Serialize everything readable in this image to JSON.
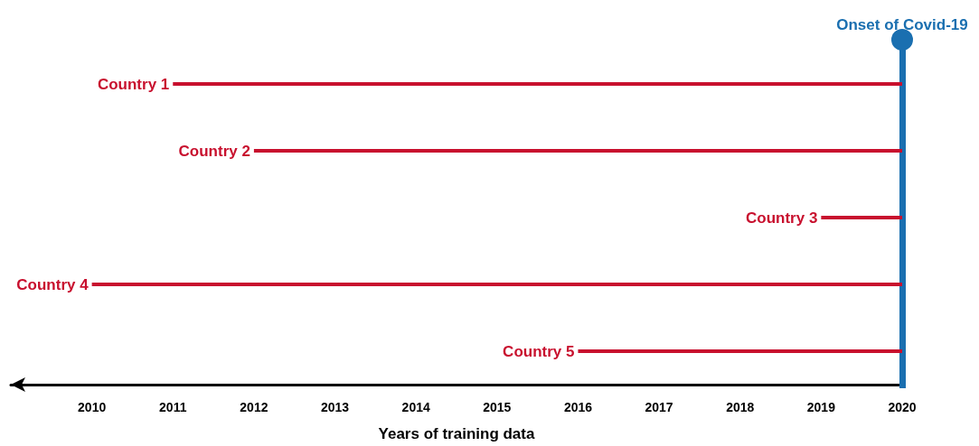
{
  "chart_data": {
    "type": "bar",
    "orientation": "horizontal",
    "xlabel": "Years of training data",
    "categories": [
      "Country 1",
      "Country 2",
      "Country 3",
      "Country 4",
      "Country 5"
    ],
    "base": [
      2011,
      2012,
      2019,
      2010,
      2016
    ],
    "values": [
      9,
      8,
      1,
      10,
      4
    ],
    "color": "#c8102e",
    "xlim": [
      2009,
      2020
    ],
    "xticks": [
      2010,
      2011,
      2012,
      2013,
      2014,
      2015,
      2016,
      2017,
      2018,
      2019,
      2020
    ],
    "ref_lines": [
      {
        "axis": "x",
        "value": 2020,
        "label": "Onset of Covid-19",
        "color": "#1a6fb0"
      }
    ],
    "grid": false
  }
}
